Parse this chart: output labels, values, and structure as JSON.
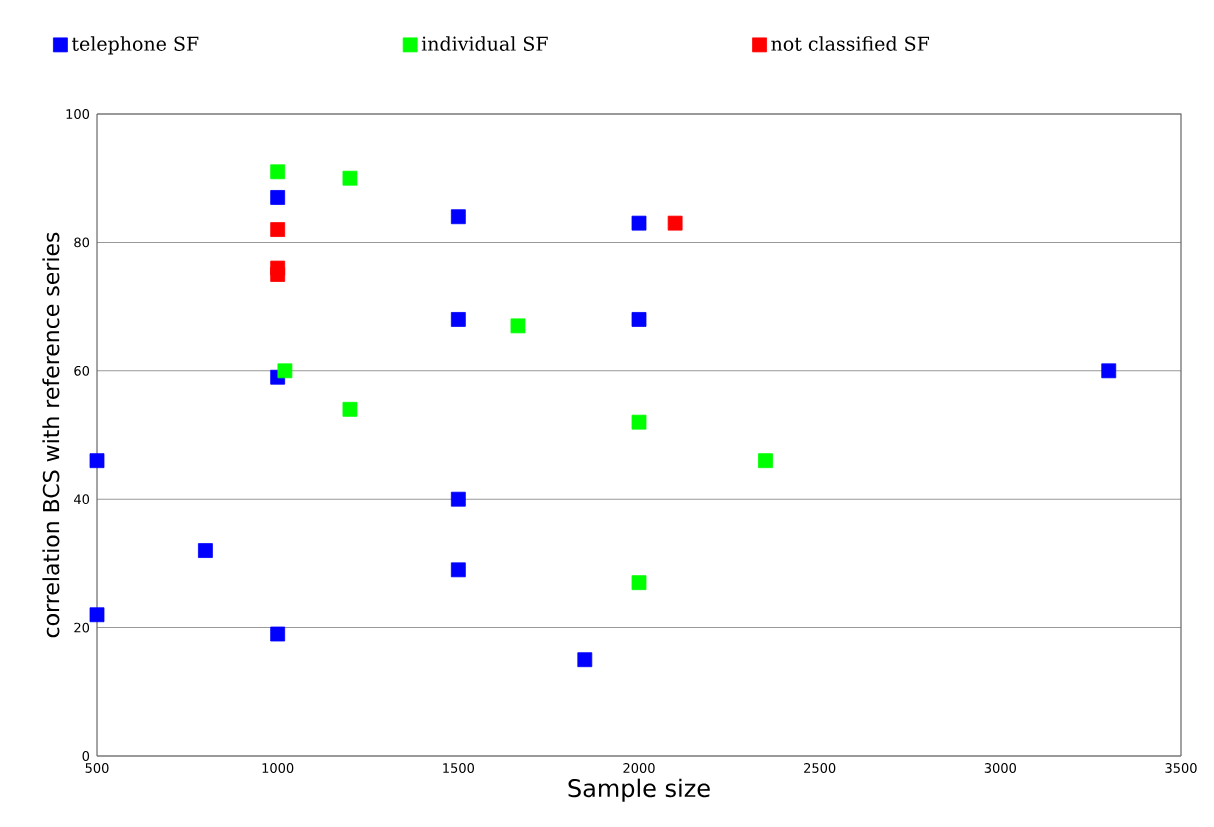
{
  "chart_data": {
    "type": "scatter",
    "xlabel": "Sample size",
    "ylabel": "correlation  BCS  with  reference  series",
    "xlim": [
      500,
      3500
    ],
    "xticks": [
      500,
      1000,
      1500,
      2000,
      2500,
      3000,
      3500
    ],
    "ylim": [
      0,
      100
    ],
    "yticks": [
      0,
      20,
      40,
      60,
      80,
      100
    ],
    "grid": "y",
    "legend": "top",
    "marker": "square",
    "series": [
      {
        "name": "telephone SF",
        "color": "#0000ff",
        "x": [
          500,
          500,
          800,
          1000,
          1000,
          1000,
          1500,
          1500,
          1500,
          1500,
          1850,
          2000,
          2000,
          3300
        ],
        "values": [
          46,
          22,
          32,
          87,
          59,
          19,
          84,
          68,
          40,
          29,
          15,
          83,
          68,
          60
        ]
      },
      {
        "name": "individual SF",
        "color": "#00ff00",
        "x": [
          1000,
          1200,
          1020,
          1200,
          1665,
          2000,
          2000,
          2350
        ],
        "values": [
          91,
          90,
          60,
          54,
          67,
          52,
          27,
          46
        ]
      },
      {
        "name": "not classified SF",
        "color": "#ff0000",
        "x": [
          1000,
          1000,
          1000,
          2100
        ],
        "values": [
          82,
          76,
          75,
          83
        ]
      }
    ]
  }
}
